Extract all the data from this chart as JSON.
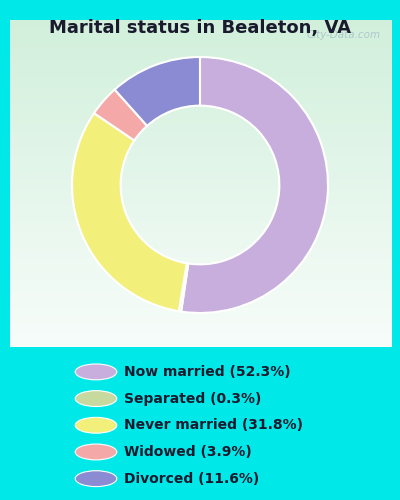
{
  "title": "Marital status in Bealeton, VA",
  "slices": [
    {
      "label": "Now married (52.3%)",
      "value": 52.3,
      "color": "#c8aedd"
    },
    {
      "label": "Separated (0.3%)",
      "value": 0.3,
      "color": "#c8d9a0"
    },
    {
      "label": "Never married (31.8%)",
      "value": 31.8,
      "color": "#f2f07a"
    },
    {
      "label": "Widowed (3.9%)",
      "value": 3.9,
      "color": "#f4a8a8"
    },
    {
      "label": "Divorced (11.6%)",
      "value": 11.6,
      "color": "#8b8bd4"
    }
  ],
  "legend_marker_colors": [
    "#c8aedd",
    "#c8d9a0",
    "#f2f07a",
    "#f4a8a8",
    "#8b8bd4"
  ],
  "bg_outer": "#00e8e8",
  "bg_chart_gradient_top": "#e8f5ec",
  "bg_chart_gradient_bottom": "#f5fbf7",
  "title_fontsize": 13,
  "legend_fontsize": 10,
  "watermark": "City-Data.com"
}
